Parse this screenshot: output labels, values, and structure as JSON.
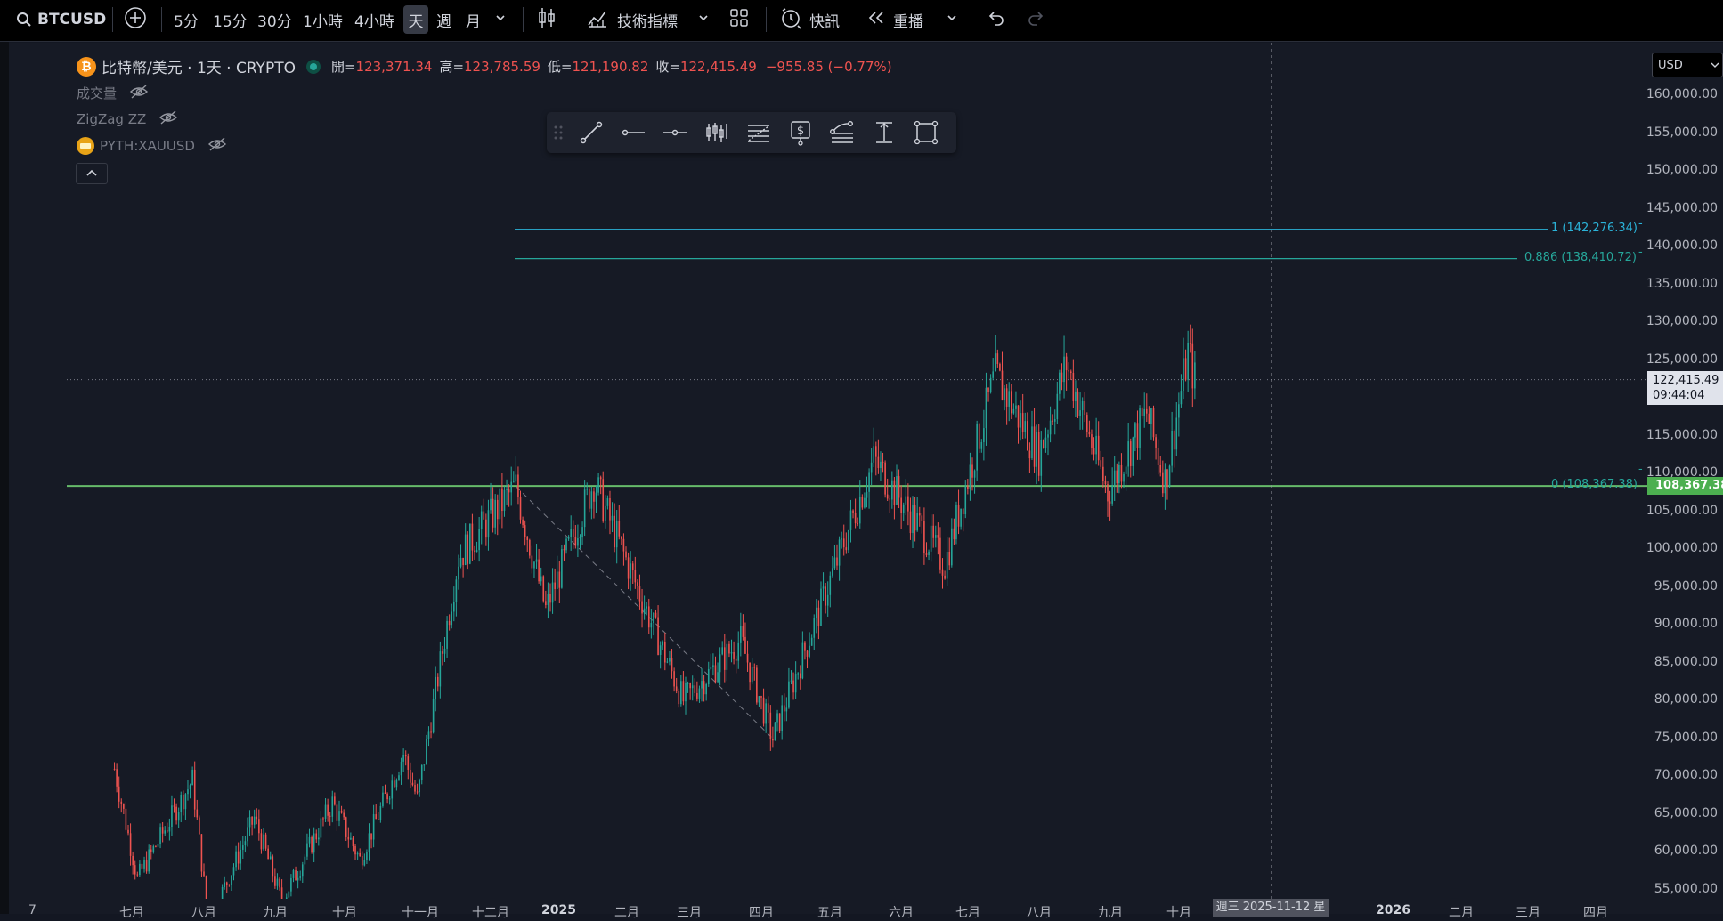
{
  "toolbar": {
    "symbol": "BTCUSD",
    "intervals": [
      "5分",
      "15分",
      "30分",
      "1小時",
      "4小時",
      "天",
      "週",
      "月"
    ],
    "indicators_label": "技術指標",
    "news_label": "快訊",
    "replay_label": "重播"
  },
  "legend": {
    "title": "比特幣/美元 · 1天 · CRYPTO",
    "open_label": "開=",
    "open": "123,371.34",
    "high_label": "高=",
    "high": "123,785.59",
    "low_label": "低=",
    "low": "121,190.82",
    "close_label": "收=",
    "close": "122,415.49",
    "change": "−955.85 (−0.77%)"
  },
  "indicators": {
    "volume": "成交量",
    "zigzag": "ZigZag ZZ",
    "xau": "PYTH:XAUUSD"
  },
  "currency": "USD",
  "fib": {
    "level1": "1 (142,276.34)",
    "level0886": "0.886 (138,410.72)",
    "level0": "0 (108,367.38)"
  },
  "price_tags": {
    "last_price": "122,415.49",
    "countdown": "09:44:04",
    "support": "108,367.38"
  },
  "crosshair_date": "週三 2025-11-12 星",
  "colors": {
    "up": "#26a69a",
    "down": "#ef5350",
    "fib1": "#2bb3d9",
    "fib886": "#26a69a",
    "support_line": "#4caf50"
  },
  "chart_data": {
    "type": "candlestick",
    "title": "比特幣/美元 · 1天 · CRYPTO",
    "ylim": [
      52000,
      162000
    ],
    "y_ticks": [
      160000,
      155000,
      150000,
      145000,
      140000,
      135000,
      130000,
      125000,
      120000,
      115000,
      110000,
      105000,
      100000,
      95000,
      90000,
      85000,
      80000,
      75000,
      70000,
      65000,
      60000,
      55000
    ],
    "y_tick_labels": [
      "160,000.00",
      "155,000.00",
      "150,000.00",
      "145,000.00",
      "140,000.00",
      "135,000.00",
      "130,000.00",
      "125,000.00",
      "120,000.00",
      "115,000.00",
      "110,000.00",
      "105,000.00",
      "100,000.00",
      "95,000.00",
      "90,000.00",
      "85,000.00",
      "80,000.00",
      "75,000.00",
      "70,000.00",
      "65,000.00",
      "60,000.00",
      "55,000.00"
    ],
    "x_tick_labels": [
      "7",
      "七月",
      "八月",
      "九月",
      "十月",
      "十一月",
      "十二月",
      "2025",
      "二月",
      "三月",
      "四月",
      "五月",
      "六月",
      "七月",
      "八月",
      "九月",
      "十月",
      "2026",
      "二月",
      "三月",
      "四月"
    ],
    "price_path": [
      {
        "t": "2024-06-25",
        "p": 71000
      },
      {
        "t": "2024-07-05",
        "p": 56500
      },
      {
        "t": "2024-07-29",
        "p": 69500
      },
      {
        "t": "2024-08-05",
        "p": 50500
      },
      {
        "t": "2024-08-25",
        "p": 64500
      },
      {
        "t": "2024-09-06",
        "p": 53500
      },
      {
        "t": "2024-09-28",
        "p": 66500
      },
      {
        "t": "2024-10-10",
        "p": 59000
      },
      {
        "t": "2024-10-29",
        "p": 73000
      },
      {
        "t": "2024-11-04",
        "p": 67000
      },
      {
        "t": "2024-11-22",
        "p": 99000
      },
      {
        "t": "2024-12-17",
        "p": 108300
      },
      {
        "t": "2024-12-30",
        "p": 92000
      },
      {
        "t": "2025-01-20",
        "p": 109000
      },
      {
        "t": "2025-02-28",
        "p": 80000
      },
      {
        "t": "2025-03-25",
        "p": 88000
      },
      {
        "t": "2025-04-08",
        "p": 75000
      },
      {
        "t": "2025-05-22",
        "p": 111800
      },
      {
        "t": "2025-06-22",
        "p": 98000
      },
      {
        "t": "2025-07-14",
        "p": 123000
      },
      {
        "t": "2025-08-02",
        "p": 112500
      },
      {
        "t": "2025-08-14",
        "p": 124500
      },
      {
        "t": "2025-09-01",
        "p": 107500
      },
      {
        "t": "2025-09-18",
        "p": 118000
      },
      {
        "t": "2025-09-26",
        "p": 109000
      },
      {
        "t": "2025-10-06",
        "p": 126000
      },
      {
        "t": "2025-10-09",
        "p": 122415.49
      }
    ],
    "support_level": 108367.38,
    "fib_levels": [
      142276.34,
      138410.72,
      108367.38
    ]
  }
}
